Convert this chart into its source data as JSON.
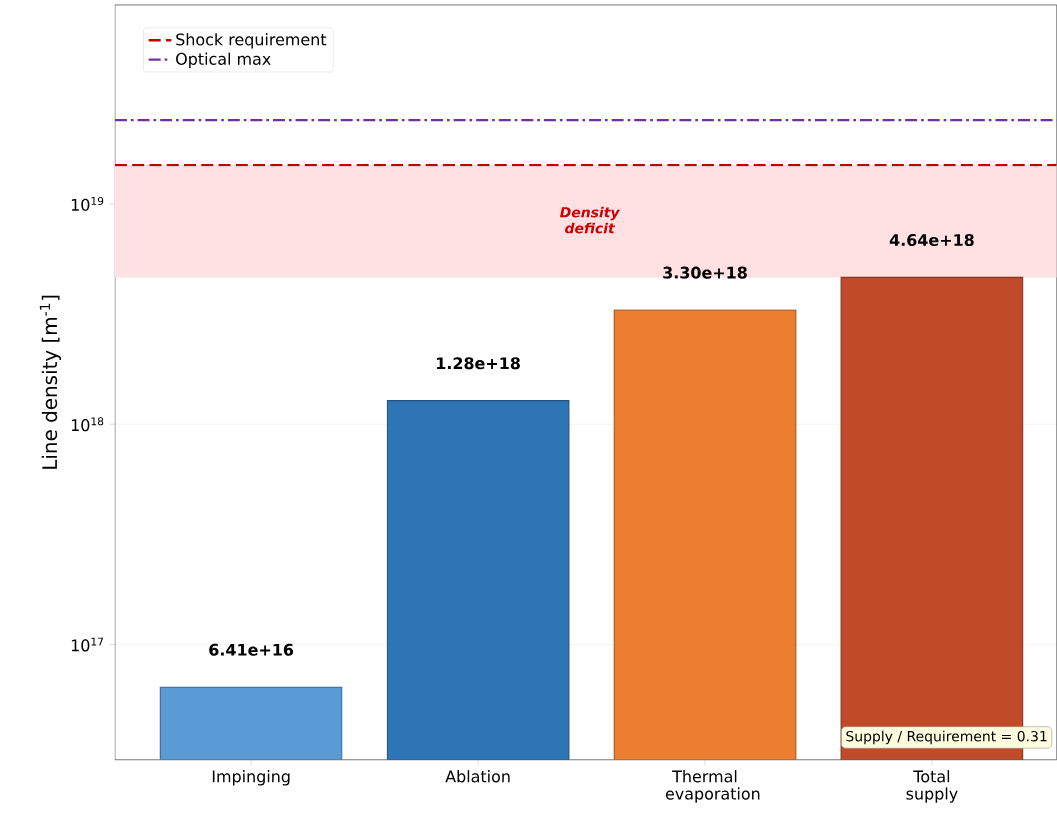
{
  "chart_data": {
    "type": "bar",
    "ylabel": "Line density [m$^{-1}$]",
    "categories": [
      "Impinging",
      "Ablation",
      "Thermal evaporation",
      "Total supply"
    ],
    "values": [
      6.41e+16,
      1.28e+18,
      3.3e+18,
      4.64e+18
    ],
    "value_labels": [
      "6.41e+16",
      "1.28e+18",
      "3.30e+18",
      "4.64e+18"
    ],
    "colors": [
      "#5b9bd5",
      "#2e75b6",
      "#ed7d31",
      "#c04b28"
    ],
    "log": true,
    "ylim": [
      3e+16,
      8e+19
    ],
    "yticks": [
      {
        "value": 1e+17,
        "label": "10$^{17}$"
      },
      {
        "value": 1e+18,
        "label": "10$^{18}$"
      },
      {
        "value": 1e+19,
        "label": "10$^{19}$"
      }
    ],
    "grid": "y",
    "legend": "top left",
    "ref_lines": [
      {
        "axis": "y",
        "value": 1.5e+19,
        "label": "Shock requirement",
        "color": "#c00000",
        "line_style": "dashed"
      },
      {
        "axis": "y",
        "value": 2.4e+19,
        "label": "Optical max",
        "color": "#7030a0",
        "line_style": "dashdot"
      }
    ],
    "bands": [
      {
        "axis": "y",
        "from": 4.64e+18,
        "to": 1.5e+19,
        "label": "Density deficit",
        "color": "#ffe0e3"
      }
    ],
    "annotations": [
      "Supply / Requirement = 0.31"
    ]
  }
}
